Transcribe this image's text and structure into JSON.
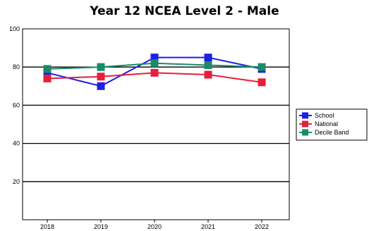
{
  "chart_data": {
    "type": "line",
    "title": "Year 12 NCEA Level 2 - Male",
    "xlabel": "",
    "ylabel": "",
    "categories": [
      "2018",
      "2019",
      "2020",
      "2021",
      "2022"
    ],
    "ylim": [
      0,
      100
    ],
    "yticks": [
      "20",
      "40",
      "60",
      "80",
      "100"
    ],
    "grid": true,
    "legend_position": "right",
    "series": [
      {
        "name": "School",
        "color": "#1f1fe6",
        "values": [
          77,
          70,
          85,
          85,
          79
        ]
      },
      {
        "name": "National",
        "color": "#e61f3c",
        "values": [
          74,
          75,
          77,
          76,
          72
        ]
      },
      {
        "name": "Decile Band",
        "color": "#1a8a6a",
        "values": [
          79,
          80,
          82,
          81,
          80
        ]
      }
    ]
  }
}
